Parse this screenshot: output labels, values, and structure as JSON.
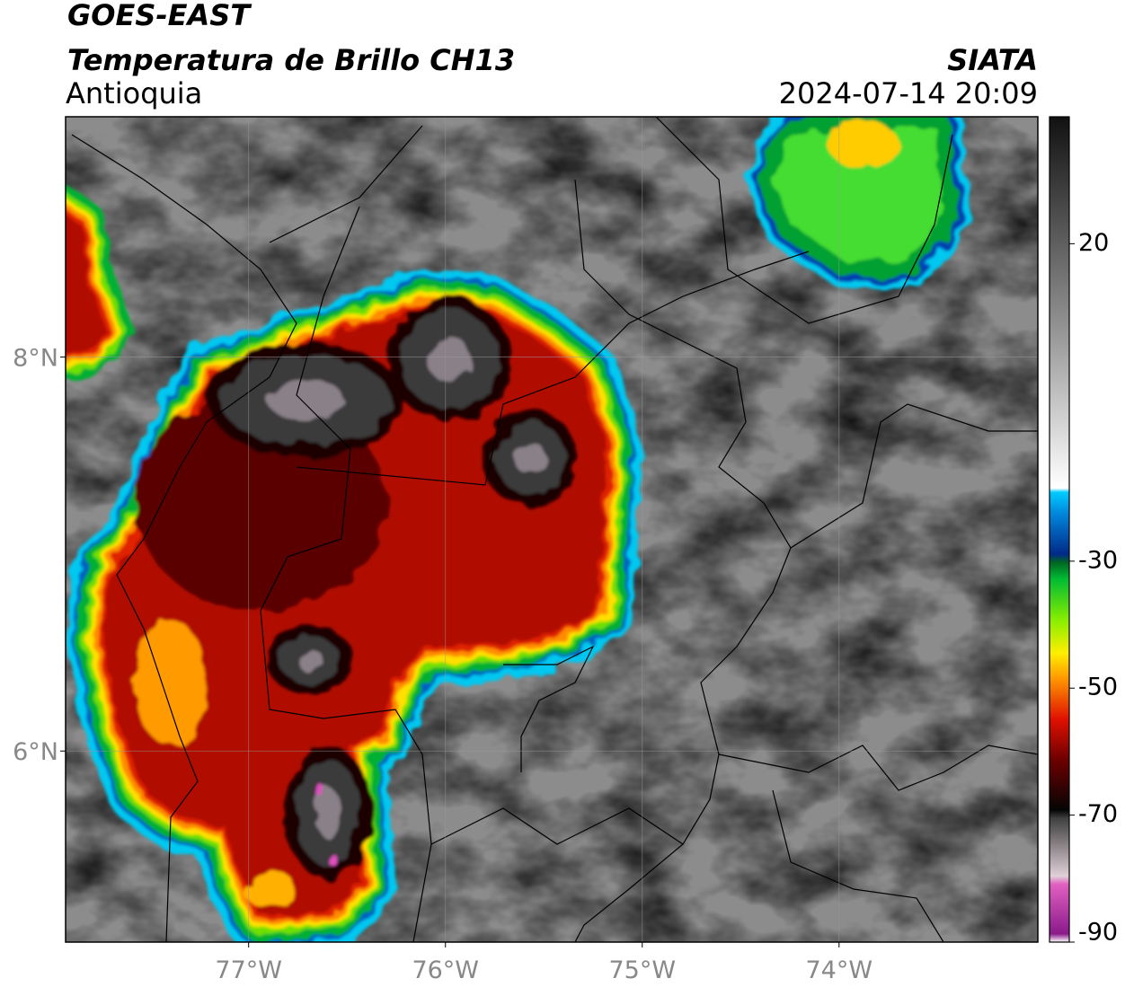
{
  "header": {
    "title": "GOES-EAST",
    "subtitle": "Temperatura de Brillo CH13",
    "region": "Antioquia",
    "source": "SIATA",
    "datetime": "2024-07-14 20:09"
  },
  "map": {
    "xlim": [
      -77.93,
      -72.99
    ],
    "ylim": [
      5.03,
      9.22
    ],
    "xticks": [
      {
        "value": -77,
        "label": "77°W"
      },
      {
        "value": -76,
        "label": "76°W"
      },
      {
        "value": -75,
        "label": "75°W"
      },
      {
        "value": -74,
        "label": "74°W"
      }
    ],
    "yticks": [
      {
        "value": 6,
        "label": "6°N"
      },
      {
        "value": 8,
        "label": "8°N"
      }
    ],
    "grid": true
  },
  "colorbar": {
    "lim": [
      -90,
      40
    ],
    "ticks": [
      20,
      -30,
      -50,
      -70,
      -90
    ]
  }
}
